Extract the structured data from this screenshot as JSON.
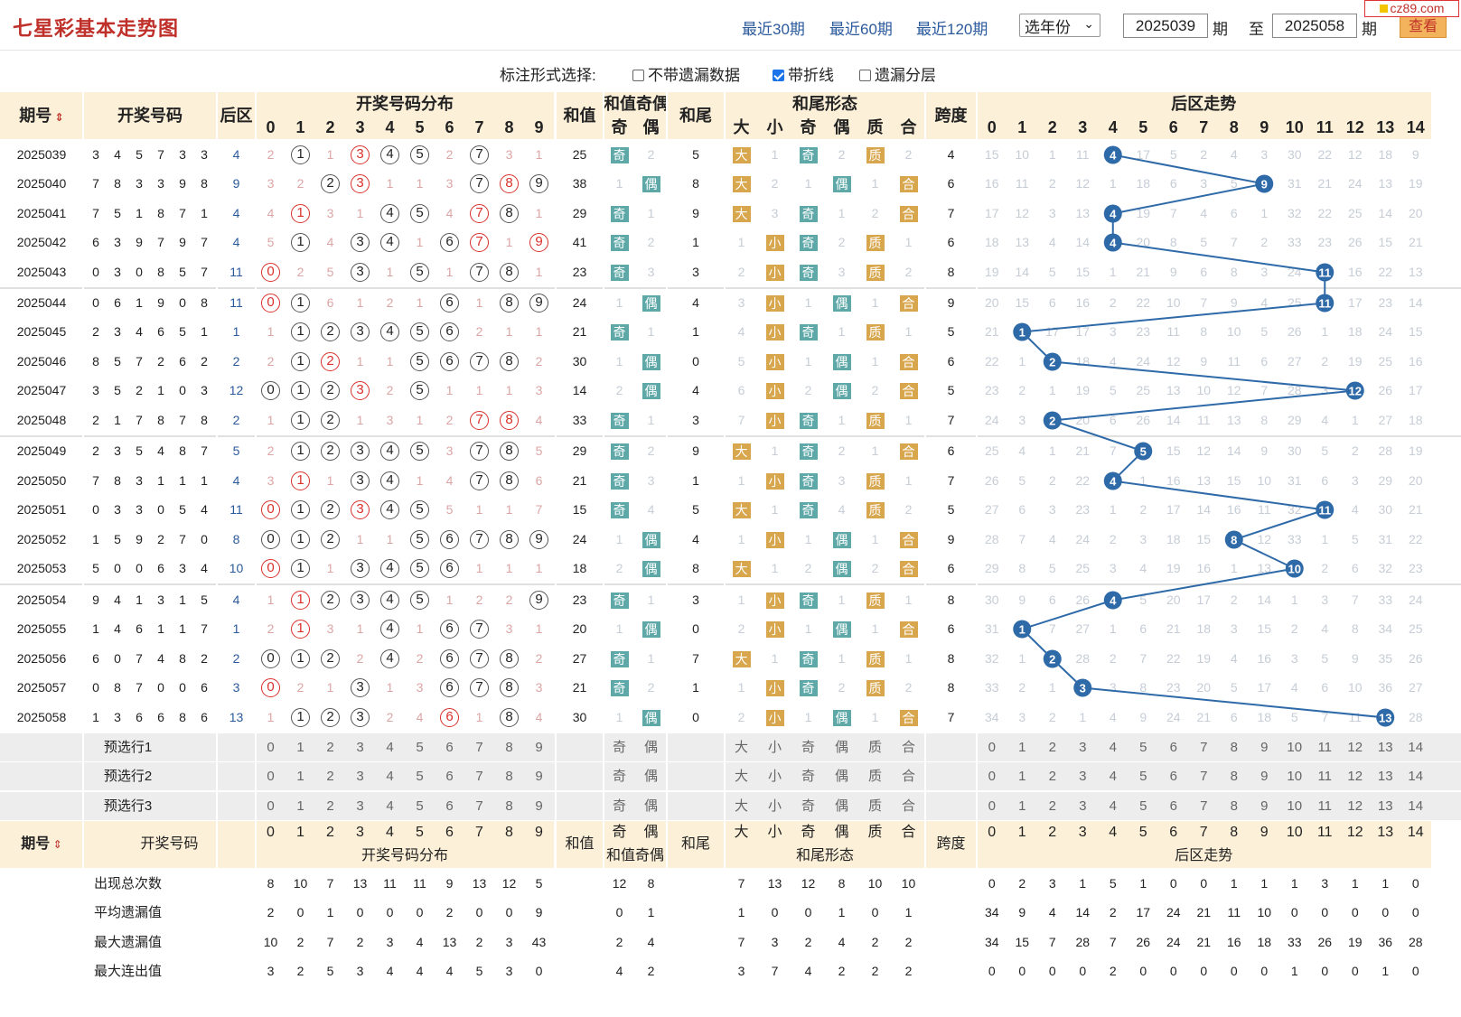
{
  "title": "七星彩基本走势图",
  "logo": "cz89.com",
  "period_links": [
    "最近30期",
    "最近60期",
    "最近120期"
  ],
  "year_select": "选年份",
  "from_issue": "2025039",
  "to_issue": "2025058",
  "qi_label": "期",
  "to_label": "至",
  "view_btn": "查看",
  "mark_label": "标注形式选择:",
  "mark_options": [
    {
      "label": "不带遗漏数据",
      "checked": false
    },
    {
      "label": "带折线",
      "checked": true
    },
    {
      "label": "遗漏分层",
      "checked": false
    }
  ],
  "headers": {
    "issue": "期号",
    "draw": "开奖号码",
    "back": "后区",
    "dist": "开奖号码分布",
    "sum": "和值",
    "sumoe": "和值奇偶",
    "tail": "和尾",
    "tailform": "和尾形态",
    "span": "跨度",
    "backtrend": "后区走势"
  },
  "oe_labels": [
    "奇",
    "偶"
  ],
  "tail_labels": [
    "大",
    "小",
    "奇",
    "偶",
    "质",
    "合"
  ],
  "digits": [
    "0",
    "1",
    "2",
    "3",
    "4",
    "5",
    "6",
    "7",
    "8",
    "9"
  ],
  "back_nums": [
    "0",
    "1",
    "2",
    "3",
    "4",
    "5",
    "6",
    "7",
    "8",
    "9",
    "10",
    "11",
    "12",
    "13",
    "14"
  ],
  "rows": [
    {
      "issue": "2025039",
      "draw": [
        "3",
        "4",
        "5",
        "7",
        "3",
        "3"
      ],
      "back": "4",
      "dist": [
        "2",
        "1",
        "1",
        "3",
        "4",
        "5",
        "2",
        "7",
        "3",
        "1"
      ],
      "sum": "25",
      "oe": [
        "奇",
        "2"
      ],
      "tail": "5",
      "tf": [
        "大",
        "1",
        "奇",
        "2",
        "质",
        "2"
      ],
      "span": "4",
      "bt": [
        "15",
        "10",
        "1",
        "11",
        "4",
        "17",
        "5",
        "2",
        "4",
        "3",
        "30",
        "22",
        "12",
        "18",
        "9"
      ]
    },
    {
      "issue": "2025040",
      "draw": [
        "7",
        "8",
        "3",
        "3",
        "9",
        "8"
      ],
      "back": "9",
      "dist": [
        "3",
        "2",
        "2",
        "3",
        "1",
        "1",
        "3",
        "7",
        "8",
        "9"
      ],
      "sum": "38",
      "oe": [
        "1",
        "偶"
      ],
      "tail": "8",
      "tf": [
        "大",
        "2",
        "1",
        "偶",
        "1",
        "合"
      ],
      "span": "6",
      "bt": [
        "16",
        "11",
        "2",
        "12",
        "1",
        "18",
        "6",
        "3",
        "5",
        "9",
        "31",
        "21",
        "24",
        "13",
        "19"
      ]
    },
    {
      "issue": "2025041",
      "draw": [
        "7",
        "5",
        "1",
        "8",
        "7",
        "1"
      ],
      "back": "4",
      "dist": [
        "4",
        "1",
        "3",
        "1",
        "4",
        "5",
        "4",
        "7",
        "8",
        "1"
      ],
      "sum": "29",
      "oe": [
        "奇",
        "1"
      ],
      "tail": "9",
      "tf": [
        "大",
        "3",
        "奇",
        "1",
        "2",
        "合"
      ],
      "span": "7",
      "bt": [
        "17",
        "12",
        "3",
        "13",
        "4",
        "19",
        "7",
        "4",
        "6",
        "1",
        "32",
        "22",
        "25",
        "14",
        "20"
      ]
    },
    {
      "issue": "2025042",
      "draw": [
        "6",
        "3",
        "9",
        "7",
        "9",
        "7"
      ],
      "back": "4",
      "dist": [
        "5",
        "1",
        "4",
        "3",
        "4",
        "1",
        "6",
        "7",
        "1",
        "9"
      ],
      "sum": "41",
      "oe": [
        "奇",
        "2"
      ],
      "tail": "1",
      "tf": [
        "1",
        "小",
        "奇",
        "2",
        "质",
        "1"
      ],
      "span": "6",
      "bt": [
        "18",
        "13",
        "4",
        "14",
        "4",
        "20",
        "8",
        "5",
        "7",
        "2",
        "33",
        "23",
        "26",
        "15",
        "21"
      ]
    },
    {
      "issue": "2025043",
      "draw": [
        "0",
        "3",
        "0",
        "8",
        "5",
        "7"
      ],
      "back": "11",
      "dist": [
        "0",
        "2",
        "5",
        "3",
        "1",
        "5",
        "1",
        "7",
        "8",
        "1"
      ],
      "sum": "23",
      "oe": [
        "奇",
        "3"
      ],
      "tail": "3",
      "tf": [
        "2",
        "小",
        "奇",
        "3",
        "质",
        "2"
      ],
      "span": "8",
      "bt": [
        "19",
        "14",
        "5",
        "15",
        "1",
        "21",
        "9",
        "6",
        "8",
        "3",
        "24",
        "11",
        "16",
        "22",
        "13"
      ]
    },
    {
      "issue": "2025044",
      "draw": [
        "0",
        "6",
        "1",
        "9",
        "0",
        "8"
      ],
      "back": "11",
      "dist": [
        "0",
        "1",
        "6",
        "1",
        "2",
        "1",
        "6",
        "1",
        "8",
        "9"
      ],
      "sum": "24",
      "oe": [
        "1",
        "偶"
      ],
      "tail": "4",
      "tf": [
        "3",
        "小",
        "1",
        "偶",
        "1",
        "合"
      ],
      "span": "9",
      "bt": [
        "20",
        "15",
        "6",
        "16",
        "2",
        "22",
        "10",
        "7",
        "9",
        "4",
        "25",
        "11",
        "17",
        "23",
        "14"
      ]
    },
    {
      "issue": "2025045",
      "draw": [
        "2",
        "3",
        "4",
        "6",
        "5",
        "1"
      ],
      "back": "1",
      "dist": [
        "1",
        "1",
        "2",
        "3",
        "4",
        "5",
        "6",
        "2",
        "1",
        "1"
      ],
      "sum": "21",
      "oe": [
        "奇",
        "1"
      ],
      "tail": "1",
      "tf": [
        "4",
        "小",
        "奇",
        "1",
        "质",
        "1"
      ],
      "span": "5",
      "bt": [
        "21",
        "1",
        "17",
        "17",
        "3",
        "23",
        "11",
        "8",
        "10",
        "5",
        "26",
        "1",
        "18",
        "24",
        "15"
      ]
    },
    {
      "issue": "2025046",
      "draw": [
        "8",
        "5",
        "7",
        "2",
        "6",
        "2"
      ],
      "back": "2",
      "dist": [
        "2",
        "1",
        "2",
        "1",
        "1",
        "5",
        "6",
        "7",
        "8",
        "2"
      ],
      "sum": "30",
      "oe": [
        "1",
        "偶"
      ],
      "tail": "0",
      "tf": [
        "5",
        "小",
        "1",
        "偶",
        "1",
        "合"
      ],
      "span": "6",
      "bt": [
        "22",
        "1",
        "2",
        "18",
        "4",
        "24",
        "12",
        "9",
        "11",
        "6",
        "27",
        "2",
        "19",
        "25",
        "16"
      ]
    },
    {
      "issue": "2025047",
      "draw": [
        "3",
        "5",
        "2",
        "1",
        "0",
        "3"
      ],
      "back": "12",
      "dist": [
        "0",
        "1",
        "2",
        "3",
        "2",
        "5",
        "1",
        "1",
        "1",
        "3"
      ],
      "sum": "14",
      "oe": [
        "2",
        "偶"
      ],
      "tail": "4",
      "tf": [
        "6",
        "小",
        "2",
        "偶",
        "2",
        "合"
      ],
      "span": "5",
      "bt": [
        "23",
        "2",
        "1",
        "19",
        "5",
        "25",
        "13",
        "10",
        "12",
        "7",
        "28",
        "3",
        "12",
        "26",
        "17"
      ]
    },
    {
      "issue": "2025048",
      "draw": [
        "2",
        "1",
        "7",
        "8",
        "7",
        "8"
      ],
      "back": "2",
      "dist": [
        "1",
        "1",
        "2",
        "1",
        "3",
        "1",
        "2",
        "7",
        "8",
        "4"
      ],
      "sum": "33",
      "oe": [
        "奇",
        "1"
      ],
      "tail": "3",
      "tf": [
        "7",
        "小",
        "奇",
        "1",
        "质",
        "1"
      ],
      "span": "7",
      "bt": [
        "24",
        "3",
        "2",
        "20",
        "6",
        "26",
        "14",
        "11",
        "13",
        "8",
        "29",
        "4",
        "1",
        "27",
        "18"
      ]
    },
    {
      "issue": "2025049",
      "draw": [
        "2",
        "3",
        "5",
        "4",
        "8",
        "7"
      ],
      "back": "5",
      "dist": [
        "2",
        "1",
        "2",
        "3",
        "4",
        "5",
        "3",
        "7",
        "8",
        "5"
      ],
      "sum": "29",
      "oe": [
        "奇",
        "2"
      ],
      "tail": "9",
      "tf": [
        "大",
        "1",
        "奇",
        "2",
        "1",
        "合"
      ],
      "span": "6",
      "bt": [
        "25",
        "4",
        "1",
        "21",
        "7",
        "5",
        "15",
        "12",
        "14",
        "9",
        "30",
        "5",
        "2",
        "28",
        "19"
      ]
    },
    {
      "issue": "2025050",
      "draw": [
        "7",
        "8",
        "3",
        "1",
        "1",
        "1"
      ],
      "back": "4",
      "dist": [
        "3",
        "1",
        "1",
        "3",
        "4",
        "1",
        "4",
        "7",
        "8",
        "6"
      ],
      "sum": "21",
      "oe": [
        "奇",
        "3"
      ],
      "tail": "1",
      "tf": [
        "1",
        "小",
        "奇",
        "3",
        "质",
        "1"
      ],
      "span": "7",
      "bt": [
        "26",
        "5",
        "2",
        "22",
        "4",
        "1",
        "16",
        "13",
        "15",
        "10",
        "31",
        "6",
        "3",
        "29",
        "20"
      ]
    },
    {
      "issue": "2025051",
      "draw": [
        "0",
        "3",
        "3",
        "0",
        "5",
        "4"
      ],
      "back": "11",
      "dist": [
        "0",
        "1",
        "2",
        "3",
        "4",
        "5",
        "5",
        "1",
        "1",
        "7"
      ],
      "sum": "15",
      "oe": [
        "奇",
        "4"
      ],
      "tail": "5",
      "tf": [
        "大",
        "1",
        "奇",
        "4",
        "质",
        "2"
      ],
      "span": "5",
      "bt": [
        "27",
        "6",
        "3",
        "23",
        "1",
        "2",
        "17",
        "14",
        "16",
        "11",
        "32",
        "11",
        "4",
        "30",
        "21"
      ]
    },
    {
      "issue": "2025052",
      "draw": [
        "1",
        "5",
        "9",
        "2",
        "7",
        "0"
      ],
      "back": "8",
      "dist": [
        "0",
        "1",
        "2",
        "1",
        "1",
        "5",
        "6",
        "7",
        "8",
        "9"
      ],
      "sum": "24",
      "oe": [
        "1",
        "偶"
      ],
      "tail": "4",
      "tf": [
        "1",
        "小",
        "1",
        "偶",
        "1",
        "合"
      ],
      "span": "9",
      "bt": [
        "28",
        "7",
        "4",
        "24",
        "2",
        "3",
        "18",
        "15",
        "8",
        "12",
        "33",
        "1",
        "5",
        "31",
        "22"
      ]
    },
    {
      "issue": "2025053",
      "draw": [
        "5",
        "0",
        "0",
        "6",
        "3",
        "4"
      ],
      "back": "10",
      "dist": [
        "0",
        "1",
        "1",
        "3",
        "4",
        "5",
        "6",
        "1",
        "1",
        "1"
      ],
      "sum": "18",
      "oe": [
        "2",
        "偶"
      ],
      "tail": "8",
      "tf": [
        "大",
        "1",
        "2",
        "偶",
        "2",
        "合"
      ],
      "span": "6",
      "bt": [
        "29",
        "8",
        "5",
        "25",
        "3",
        "4",
        "19",
        "16",
        "1",
        "13",
        "10",
        "2",
        "6",
        "32",
        "23"
      ]
    },
    {
      "issue": "2025054",
      "draw": [
        "9",
        "4",
        "1",
        "3",
        "1",
        "5"
      ],
      "back": "4",
      "dist": [
        "1",
        "1",
        "2",
        "3",
        "4",
        "5",
        "1",
        "2",
        "2",
        "9"
      ],
      "sum": "23",
      "oe": [
        "奇",
        "1"
      ],
      "tail": "3",
      "tf": [
        "1",
        "小",
        "奇",
        "1",
        "质",
        "1"
      ],
      "span": "8",
      "bt": [
        "30",
        "9",
        "6",
        "26",
        "4",
        "5",
        "20",
        "17",
        "2",
        "14",
        "1",
        "3",
        "7",
        "33",
        "24"
      ]
    },
    {
      "issue": "2025055",
      "draw": [
        "1",
        "4",
        "6",
        "1",
        "1",
        "7"
      ],
      "back": "1",
      "dist": [
        "2",
        "1",
        "3",
        "1",
        "4",
        "1",
        "6",
        "7",
        "3",
        "1"
      ],
      "sum": "20",
      "oe": [
        "1",
        "偶"
      ],
      "tail": "0",
      "tf": [
        "2",
        "小",
        "1",
        "偶",
        "1",
        "合"
      ],
      "span": "6",
      "bt": [
        "31",
        "1",
        "7",
        "27",
        "1",
        "6",
        "21",
        "18",
        "3",
        "15",
        "2",
        "4",
        "8",
        "34",
        "25"
      ]
    },
    {
      "issue": "2025056",
      "draw": [
        "6",
        "0",
        "7",
        "4",
        "8",
        "2"
      ],
      "back": "2",
      "dist": [
        "0",
        "1",
        "2",
        "2",
        "4",
        "2",
        "6",
        "7",
        "8",
        "2"
      ],
      "sum": "27",
      "oe": [
        "奇",
        "1"
      ],
      "tail": "7",
      "tf": [
        "大",
        "1",
        "奇",
        "1",
        "质",
        "1"
      ],
      "span": "8",
      "bt": [
        "32",
        "1",
        "2",
        "28",
        "2",
        "7",
        "22",
        "19",
        "4",
        "16",
        "3",
        "5",
        "9",
        "35",
        "26"
      ]
    },
    {
      "issue": "2025057",
      "draw": [
        "0",
        "8",
        "7",
        "0",
        "0",
        "6"
      ],
      "back": "3",
      "dist": [
        "0",
        "2",
        "1",
        "3",
        "1",
        "3",
        "6",
        "7",
        "8",
        "3"
      ],
      "sum": "21",
      "oe": [
        "奇",
        "2"
      ],
      "tail": "1",
      "tf": [
        "1",
        "小",
        "奇",
        "2",
        "质",
        "2"
      ],
      "span": "8",
      "bt": [
        "33",
        "2",
        "1",
        "3",
        "3",
        "8",
        "23",
        "20",
        "5",
        "17",
        "4",
        "6",
        "10",
        "36",
        "27"
      ]
    },
    {
      "issue": "2025058",
      "draw": [
        "1",
        "3",
        "6",
        "6",
        "8",
        "6"
      ],
      "back": "13",
      "dist": [
        "1",
        "1",
        "2",
        "3",
        "2",
        "4",
        "6",
        "1",
        "8",
        "4"
      ],
      "sum": "30",
      "oe": [
        "1",
        "偶"
      ],
      "tail": "0",
      "tf": [
        "2",
        "小",
        "1",
        "偶",
        "1",
        "合"
      ],
      "span": "7",
      "bt": [
        "34",
        "3",
        "2",
        "1",
        "4",
        "9",
        "24",
        "21",
        "6",
        "18",
        "5",
        "7",
        "11",
        "13",
        "28"
      ]
    }
  ],
  "preselect": [
    "预选行1",
    "预选行2",
    "预选行3"
  ],
  "stats": [
    {
      "label": "出现总次数",
      "dist": [
        "8",
        "10",
        "7",
        "13",
        "11",
        "11",
        "9",
        "13",
        "12",
        "5"
      ],
      "oe": [
        "12",
        "8"
      ],
      "tf": [
        "7",
        "13",
        "12",
        "8",
        "10",
        "10"
      ],
      "bt": [
        "0",
        "2",
        "3",
        "1",
        "5",
        "1",
        "0",
        "0",
        "1",
        "1",
        "1",
        "3",
        "1",
        "1",
        "0"
      ]
    },
    {
      "label": "平均遗漏值",
      "dist": [
        "2",
        "0",
        "1",
        "0",
        "0",
        "0",
        "2",
        "0",
        "0",
        "9"
      ],
      "oe": [
        "0",
        "1"
      ],
      "tf": [
        "1",
        "0",
        "0",
        "1",
        "0",
        "1"
      ],
      "bt": [
        "34",
        "9",
        "4",
        "14",
        "2",
        "17",
        "24",
        "21",
        "11",
        "10",
        "0",
        "0",
        "0",
        "0",
        "0"
      ]
    },
    {
      "label": "最大遗漏值",
      "dist": [
        "10",
        "2",
        "7",
        "2",
        "3",
        "4",
        "13",
        "2",
        "3",
        "43"
      ],
      "oe": [
        "2",
        "4"
      ],
      "tf": [
        "7",
        "3",
        "2",
        "4",
        "2",
        "2"
      ],
      "bt": [
        "34",
        "15",
        "7",
        "28",
        "7",
        "26",
        "24",
        "21",
        "16",
        "18",
        "33",
        "26",
        "19",
        "36",
        "28"
      ]
    },
    {
      "label": "最大连出值",
      "dist": [
        "3",
        "2",
        "5",
        "3",
        "4",
        "4",
        "4",
        "5",
        "3",
        "0"
      ],
      "oe": [
        "4",
        "2"
      ],
      "tf": [
        "3",
        "7",
        "4",
        "2",
        "2",
        "2"
      ],
      "bt": [
        "0",
        "0",
        "0",
        "0",
        "2",
        "0",
        "0",
        "0",
        "0",
        "0",
        "1",
        "0",
        "0",
        "1",
        "0"
      ]
    }
  ],
  "colors": {
    "title_red": "#c0302a",
    "link_blue": "#2b5a9c",
    "header_bg": "#fdf0d8",
    "ball_red": "#d9302b",
    "tag_teal": "#5fa8a8",
    "tag_gold": "#d8a64d",
    "trend_blue": "#2f6aa8"
  }
}
